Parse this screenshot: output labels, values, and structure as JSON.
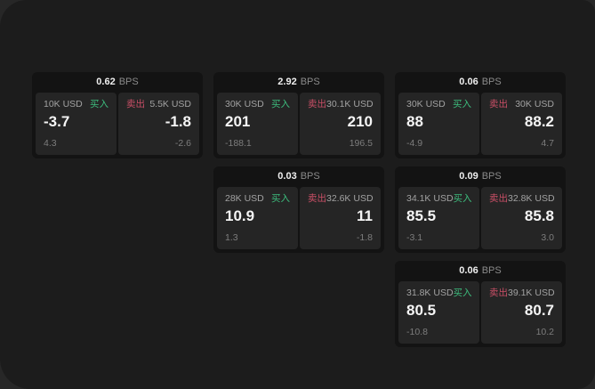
{
  "theme": {
    "outer_bg": "#272727",
    "panel_bg": "#1c1c1c",
    "card_bg": "#131313",
    "tile_bg": "#252525",
    "buy_color": "#3dbd7d",
    "sell_color": "#c94f66",
    "value_color": "#f5f5f5",
    "label_color": "#a2a2a2",
    "delta_color": "#7d7d7d"
  },
  "labels": {
    "bps_unit": "BPS",
    "buy": "买入",
    "sell": "卖出"
  },
  "cards": [
    {
      "bps": "0.62",
      "buy": {
        "size": "10K USD",
        "price": "-3.7",
        "delta": "4.3"
      },
      "sell": {
        "size": "5.5K USD",
        "price": "-1.8",
        "delta": "-2.6"
      }
    },
    {
      "bps": "2.92",
      "buy": {
        "size": "30K USD",
        "price": "201",
        "delta": "-188.1"
      },
      "sell": {
        "size": "30.1K USD",
        "price": "210",
        "delta": "196.5"
      }
    },
    {
      "bps": "0.06",
      "buy": {
        "size": "30K USD",
        "price": "88",
        "delta": "-4.9"
      },
      "sell": {
        "size": "30K USD",
        "price": "88.2",
        "delta": "4.7"
      }
    },
    {
      "bps": "0.03",
      "buy": {
        "size": "28K USD",
        "price": "10.9",
        "delta": "1.3"
      },
      "sell": {
        "size": "32.6K USD",
        "price": "11",
        "delta": "-1.8"
      }
    },
    {
      "bps": "0.09",
      "buy": {
        "size": "34.1K USD",
        "price": "85.5",
        "delta": "-3.1"
      },
      "sell": {
        "size": "32.8K USD",
        "price": "85.8",
        "delta": "3.0"
      }
    },
    {
      "bps": "0.06",
      "buy": {
        "size": "31.8K USD",
        "price": "80.5",
        "delta": "-10.8"
      },
      "sell": {
        "size": "39.1K USD",
        "price": "80.7",
        "delta": "10.2"
      }
    }
  ]
}
